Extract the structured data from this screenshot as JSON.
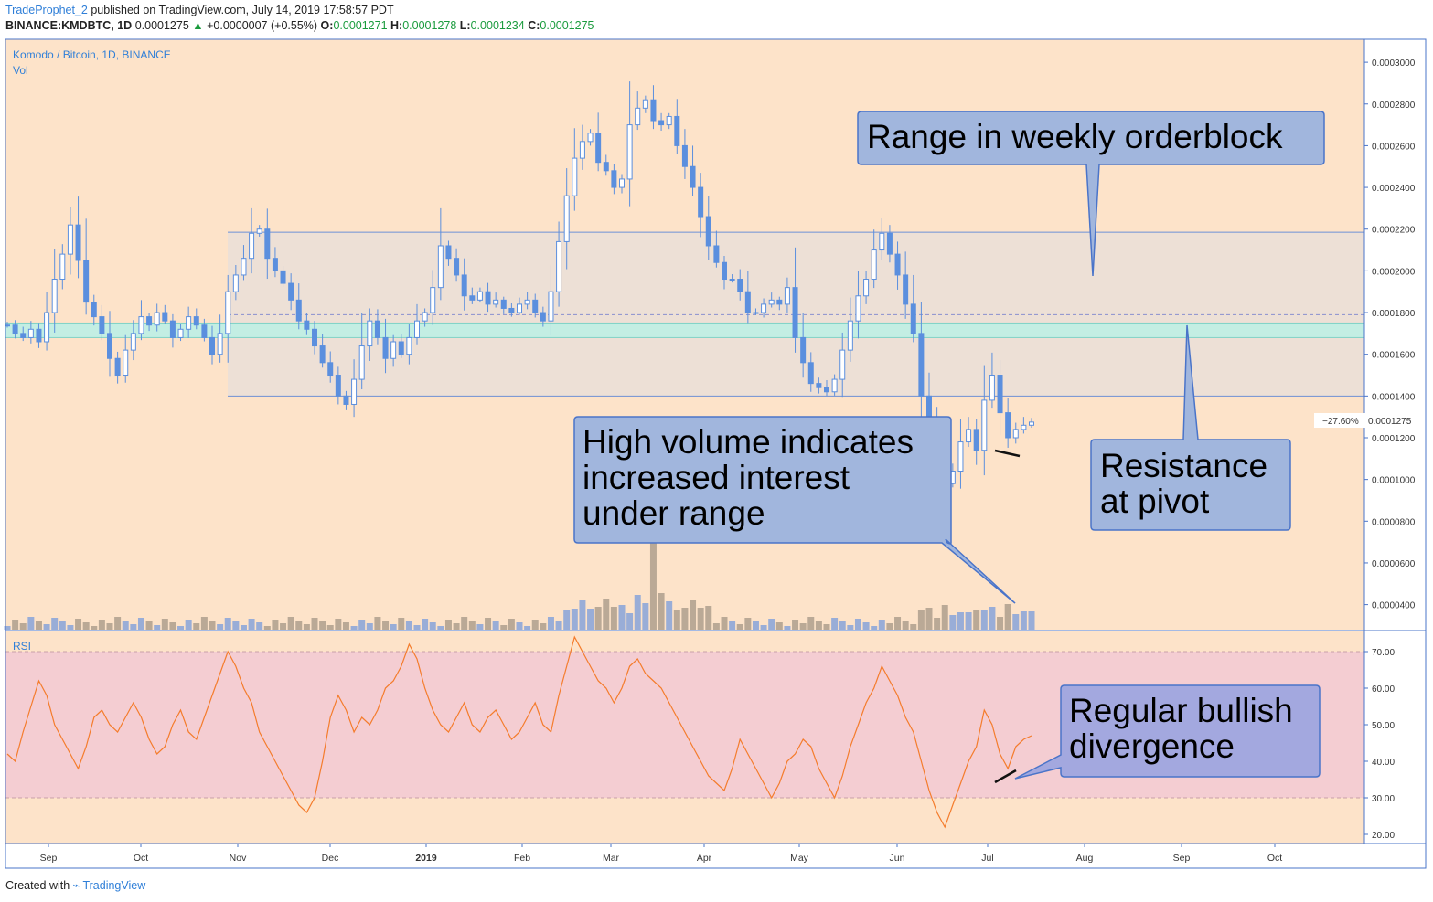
{
  "header": {
    "user": "TradeProphet_2",
    "published": "published on TradingView.com, July 14, 2019 17:58:57 PDT",
    "symbol": "BINANCE:KMDBTC, 1D",
    "price": "0.0001275",
    "change": "+0.0000007 (+0.55%)",
    "o_label": "O:",
    "o_val": "0.0001271",
    "h_label": "H:",
    "h_val": "0.0001278",
    "l_label": "L:",
    "l_val": "0.0001234",
    "c_label": "C:",
    "c_val": "0.0001275"
  },
  "footer": {
    "created": "Created with",
    "brand": "TradingView"
  },
  "colors": {
    "background": "#fde3c9",
    "candle": "#5b8fde",
    "rsi_line": "#f47c2c",
    "rsi_band": "#f4cdd2",
    "range_box": "#ede0d6",
    "pivot_band": "#c3eee3",
    "callout_fill": "#a1b6dd",
    "callout_fill_rsi": "#a3a8df",
    "callout_border": "#4a74c9"
  },
  "chart_data": [
    {
      "type": "candlestick",
      "title": "Komodo / Bitcoin, 1D, BINANCE",
      "volume_label": "Vol",
      "ylim": [
        2.8e-05,
        0.000311
      ],
      "y_ticks": [
        "0.0000400",
        "0.0000600",
        "0.0000800",
        "0.0001000",
        "0.0001200",
        "0.0001400",
        "0.0001600",
        "0.0001800",
        "0.0002000",
        "0.0002200",
        "0.0002400",
        "0.0002600",
        "0.0002800",
        "0.0003000"
      ],
      "x_ticks": [
        "Sep",
        "Oct",
        "Nov",
        "Dec",
        "2019",
        "Feb",
        "Mar",
        "Apr",
        "May",
        "Jun",
        "Jul",
        "Aug",
        "Sep",
        "Oct"
      ],
      "close_series_approx": [
        0.000174,
        0.00017,
        0.000168,
        0.000172,
        0.000166,
        0.00018,
        0.000196,
        0.000208,
        0.000222,
        0.000205,
        0.000185,
        0.000178,
        0.00017,
        0.000158,
        0.00015,
        0.000162,
        0.00017,
        0.000178,
        0.000174,
        0.00018,
        0.000176,
        0.000168,
        0.000172,
        0.000178,
        0.000174,
        0.000168,
        0.00016,
        0.00017,
        0.00019,
        0.000198,
        0.000206,
        0.000218,
        0.00022,
        0.000206,
        0.0002,
        0.000194,
        0.000186,
        0.000176,
        0.000172,
        0.000164,
        0.000156,
        0.00015,
        0.00014,
        0.000136,
        0.000148,
        0.000164,
        0.000176,
        0.000168,
        0.000158,
        0.000166,
        0.00016,
        0.000168,
        0.000176,
        0.00018,
        0.000192,
        0.000212,
        0.000206,
        0.000198,
        0.000188,
        0.000186,
        0.00019,
        0.000184,
        0.000186,
        0.000182,
        0.00018,
        0.000184,
        0.000186,
        0.00018,
        0.000176,
        0.00019,
        0.000214,
        0.000236,
        0.000254,
        0.000262,
        0.000266,
        0.000252,
        0.000248,
        0.00024,
        0.000244,
        0.00027,
        0.000278,
        0.000282,
        0.000272,
        0.00027,
        0.000274,
        0.00026,
        0.00025,
        0.00024,
        0.000226,
        0.000212,
        0.000204,
        0.000196,
        0.000196,
        0.00019,
        0.00018,
        0.00018,
        0.000184,
        0.000186,
        0.000184,
        0.000192,
        0.000168,
        0.000156,
        0.000146,
        0.000144,
        0.000142,
        0.000148,
        0.000162,
        0.000176,
        0.000188,
        0.000196,
        0.00021,
        0.000218,
        0.000208,
        0.000198,
        0.000184,
        0.00017,
        0.00014,
        0.000124,
        0.000112,
        9.8e-05,
        0.000104,
        0.000118,
        0.000124,
        0.000114,
        0.000138,
        0.00015,
        0.000132,
        0.00012,
        0.000124,
        0.000126,
        0.0001275
      ],
      "current_price": "0.0001275",
      "current_change": "−27.60%",
      "range_box": {
        "top": 0.0002185,
        "bottom": 0.00014
      },
      "pivot_band": {
        "top": 0.000175,
        "bottom": 0.000168
      },
      "dashed_line": 0.000179,
      "annotations": [
        "Range in weekly orderblock",
        "High volume indicates increased interest under range",
        "Resistance at pivot"
      ]
    },
    {
      "type": "line",
      "title": "RSI",
      "ylim": [
        17.5,
        75.5
      ],
      "y_ticks": [
        "20.00",
        "30.00",
        "40.00",
        "50.00",
        "60.00",
        "70.00"
      ],
      "band": [
        30,
        70
      ],
      "values_approx": [
        42,
        40,
        48,
        55,
        62,
        58,
        50,
        46,
        42,
        38,
        44,
        52,
        54,
        50,
        48,
        52,
        56,
        52,
        46,
        42,
        44,
        50,
        54,
        48,
        46,
        52,
        58,
        64,
        70,
        66,
        60,
        56,
        48,
        44,
        40,
        36,
        32,
        28,
        26,
        30,
        40,
        52,
        58,
        54,
        48,
        52,
        50,
        54,
        60,
        62,
        66,
        72,
        68,
        60,
        54,
        50,
        48,
        52,
        56,
        50,
        48,
        52,
        54,
        50,
        46,
        48,
        52,
        56,
        50,
        48,
        58,
        66,
        74,
        70,
        66,
        62,
        60,
        56,
        60,
        66,
        68,
        64,
        62,
        60,
        56,
        52,
        48,
        44,
        40,
        36,
        34,
        32,
        38,
        46,
        42,
        38,
        34,
        30,
        34,
        40,
        42,
        46,
        44,
        38,
        34,
        30,
        36,
        44,
        50,
        56,
        60,
        66,
        62,
        58,
        52,
        48,
        40,
        32,
        26,
        22,
        28,
        34,
        40,
        44,
        54,
        50,
        42,
        38,
        44,
        46,
        47
      ],
      "annotations": [
        "Regular bullish divergence"
      ]
    }
  ]
}
